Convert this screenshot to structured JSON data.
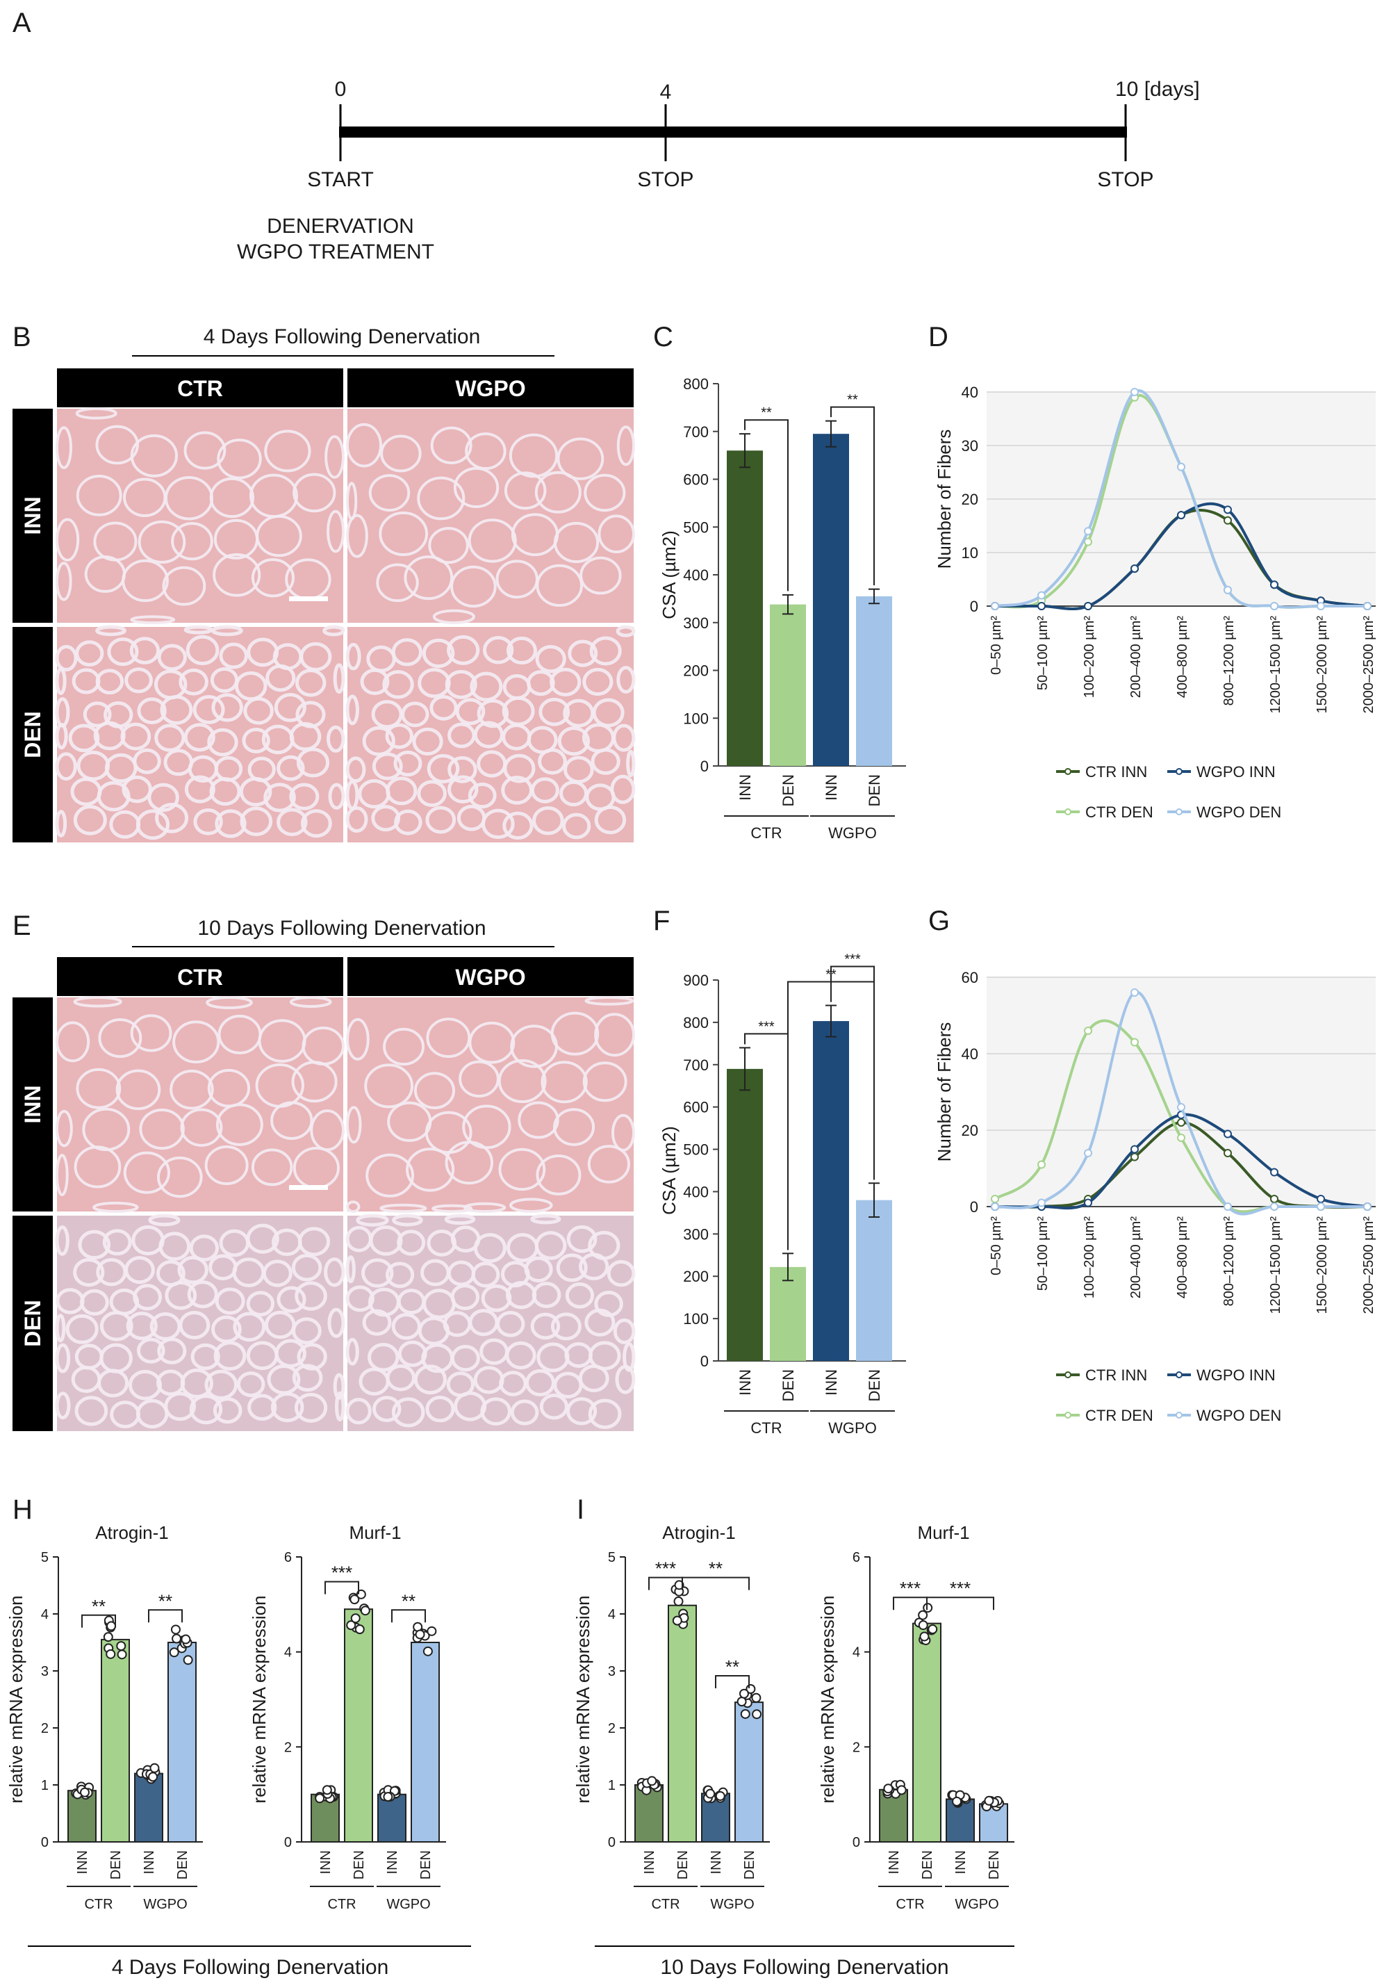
{
  "panels": {
    "A": {
      "label": "A",
      "ticks": [
        "0",
        "4",
        "10 [days]"
      ],
      "stops": [
        "START",
        "STOP",
        "STOP"
      ],
      "start_notes": [
        "DENERVATION",
        "WGPO TREATMENT"
      ]
    },
    "B": {
      "label": "B",
      "title": "4 Days Following Denervation",
      "col_headers": [
        "CTR",
        "WGPO"
      ],
      "row_headers": [
        "INN",
        "DEN"
      ]
    },
    "E": {
      "label": "E",
      "title": "10 Days Following Denervation",
      "col_headers": [
        "CTR",
        "WGPO"
      ],
      "row_headers": [
        "INN",
        "DEN"
      ]
    },
    "C": {
      "label": "C"
    },
    "D": {
      "label": "D"
    },
    "F": {
      "label": "F"
    },
    "G": {
      "label": "G"
    },
    "H": {
      "label": "H",
      "footer": "4 Days Following Denervation"
    },
    "I": {
      "label": "I",
      "footer": "10 Days Following Denervation"
    }
  },
  "colors": {
    "ctr_inn": "#3a5a27",
    "ctr_den": "#a5d38d",
    "wgpo_inn": "#1e4a7a",
    "wgpo_den": "#a3c4e8",
    "ctr_inn_light": "#6f8e5d",
    "wgpo_inn_light": "#3f6489",
    "histo_bg": "#e8b5b8",
    "histo_line": "#f3eaf0"
  },
  "chart_data": [
    {
      "id": "C",
      "type": "bar",
      "ylabel": "CSA (µm2)",
      "ylim": [
        0,
        800
      ],
      "yticks": [
        0,
        100,
        200,
        300,
        400,
        500,
        600,
        700,
        800
      ],
      "categories": [
        "INN",
        "DEN",
        "INN",
        "DEN"
      ],
      "groups": [
        "CTR",
        "WGPO"
      ],
      "values": [
        660,
        338,
        695,
        355
      ],
      "errors": [
        35,
        20,
        27,
        15
      ],
      "sig": [
        {
          "from": 0,
          "to": 1,
          "label": "**"
        },
        {
          "from": 2,
          "to": 3,
          "label": "**"
        }
      ]
    },
    {
      "id": "D",
      "type": "line",
      "ylabel": "Number of Fibers",
      "ylim": [
        0,
        40
      ],
      "yticks": [
        0,
        10,
        20,
        30,
        40
      ],
      "categories": [
        "0–50 µm²",
        "50–100 µm²",
        "100–200 µm²",
        "200–400 µm²",
        "400–800 µm²",
        "800–1200 µm²",
        "1200–1500 µm²",
        "1500–2000 µm²",
        "2000–2500 µm²"
      ],
      "series": [
        {
          "name": "CTR INN",
          "values": [
            0,
            0,
            0,
            7,
            17,
            16,
            4,
            1,
            0
          ]
        },
        {
          "name": "CTR DEN",
          "values": [
            0,
            1,
            12,
            39,
            26,
            3,
            0,
            0,
            0
          ]
        },
        {
          "name": "WGPO INN",
          "values": [
            0,
            0,
            0,
            7,
            17,
            18,
            4,
            1,
            0
          ]
        },
        {
          "name": "WGPO DEN",
          "values": [
            0,
            2,
            14,
            40,
            26,
            3,
            0,
            0,
            0
          ]
        }
      ]
    },
    {
      "id": "F",
      "type": "bar",
      "ylabel": "CSA (µm2)",
      "ylim": [
        0,
        900
      ],
      "yticks": [
        0,
        100,
        200,
        300,
        400,
        500,
        600,
        700,
        800,
        900
      ],
      "categories": [
        "INN",
        "DEN",
        "INN",
        "DEN"
      ],
      "groups": [
        "CTR",
        "WGPO"
      ],
      "values": [
        690,
        222,
        803,
        380
      ],
      "errors": [
        50,
        32,
        37,
        40
      ],
      "sig": [
        {
          "from": 0,
          "to": 1,
          "label": "***"
        },
        {
          "from": 1,
          "to": 3,
          "label": "**"
        },
        {
          "from": 2,
          "to": 3,
          "label": "***"
        }
      ]
    },
    {
      "id": "G",
      "type": "line",
      "ylabel": "Number of Fibers",
      "ylim": [
        0,
        60
      ],
      "yticks": [
        0,
        20,
        40,
        60
      ],
      "categories": [
        "0–50 µm²",
        "50–100 µm²",
        "100–200 µm²",
        "200–400 µm²",
        "400–800 µm²",
        "800–1200 µm²",
        "1200–1500 µm²",
        "1500–2000 µm²",
        "2000–2500 µm²"
      ],
      "series": [
        {
          "name": "CTR INN",
          "values": [
            0,
            0,
            2,
            13,
            22,
            14,
            2,
            0,
            0
          ]
        },
        {
          "name": "CTR DEN",
          "values": [
            2,
            11,
            46,
            43,
            18,
            0,
            0,
            0,
            0
          ]
        },
        {
          "name": "WGPO INN",
          "values": [
            0,
            0,
            1,
            15,
            24,
            19,
            9,
            2,
            0
          ]
        },
        {
          "name": "WGPO DEN",
          "values": [
            0,
            1,
            14,
            56,
            26,
            0,
            0,
            0,
            0
          ]
        }
      ]
    },
    {
      "id": "H1",
      "type": "bar",
      "title": "Atrogin-1",
      "ylabel": "relative mRNA expression",
      "ylim": [
        0,
        5
      ],
      "yticks": [
        0,
        1,
        2,
        3,
        4,
        5
      ],
      "categories": [
        "INN",
        "DEN",
        "INN",
        "DEN"
      ],
      "groups": [
        "CTR",
        "WGPO"
      ],
      "values": [
        0.9,
        3.55,
        1.2,
        3.5
      ],
      "sig": [
        {
          "from": 0,
          "to": 1,
          "label": "**"
        },
        {
          "from": 2,
          "to": 3,
          "label": "**"
        }
      ]
    },
    {
      "id": "H2",
      "type": "bar",
      "title": "Murf-1",
      "ylabel": "relative mRNA expression",
      "ylim": [
        0,
        6
      ],
      "yticks": [
        0,
        2,
        4,
        6
      ],
      "categories": [
        "INN",
        "DEN",
        "INN",
        "DEN"
      ],
      "groups": [
        "CTR",
        "WGPO"
      ],
      "values": [
        1.0,
        4.9,
        1.0,
        4.2
      ],
      "sig": [
        {
          "from": 0,
          "to": 1,
          "label": "***"
        },
        {
          "from": 2,
          "to": 3,
          "label": "**"
        }
      ]
    },
    {
      "id": "I1",
      "type": "bar",
      "title": "Atrogin-1",
      "ylabel": "relative mRNA expression",
      "ylim": [
        0,
        5
      ],
      "yticks": [
        0,
        1,
        2,
        3,
        4,
        5
      ],
      "categories": [
        "INN",
        "DEN",
        "INN",
        "DEN"
      ],
      "groups": [
        "CTR",
        "WGPO"
      ],
      "values": [
        1.0,
        4.15,
        0.85,
        2.45
      ],
      "sig": [
        {
          "from": 0,
          "to": 1,
          "label": "***"
        },
        {
          "from": 1,
          "to": 3,
          "label": "**"
        },
        {
          "from": 2,
          "to": 3,
          "label": "**"
        }
      ]
    },
    {
      "id": "I2",
      "type": "bar",
      "title": "Murf-1",
      "ylabel": "relative mRNA expression",
      "ylim": [
        0,
        6
      ],
      "yticks": [
        0,
        2,
        4,
        6
      ],
      "categories": [
        "INN",
        "DEN",
        "INN",
        "DEN"
      ],
      "groups": [
        "CTR",
        "WGPO"
      ],
      "values": [
        1.1,
        4.6,
        0.9,
        0.8
      ],
      "sig": [
        {
          "from": 0,
          "to": 1,
          "label": "***"
        },
        {
          "from": 1,
          "to": 3,
          "label": "***"
        }
      ]
    }
  ]
}
